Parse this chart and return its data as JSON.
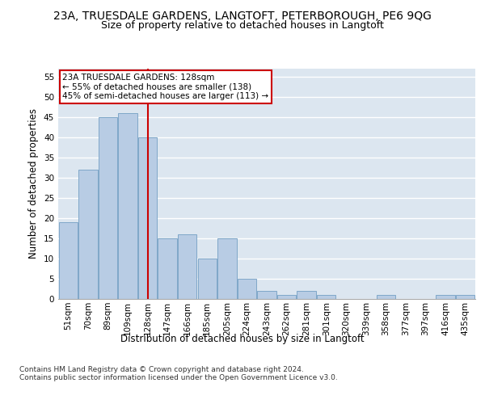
{
  "title": "23A, TRUESDALE GARDENS, LANGTOFT, PETERBOROUGH, PE6 9QG",
  "subtitle": "Size of property relative to detached houses in Langtoft",
  "xlabel": "Distribution of detached houses by size in Langtoft",
  "ylabel": "Number of detached properties",
  "categories": [
    "51sqm",
    "70sqm",
    "89sqm",
    "109sqm",
    "128sqm",
    "147sqm",
    "166sqm",
    "185sqm",
    "205sqm",
    "224sqm",
    "243sqm",
    "262sqm",
    "281sqm",
    "301sqm",
    "320sqm",
    "339sqm",
    "358sqm",
    "377sqm",
    "397sqm",
    "416sqm",
    "435sqm"
  ],
  "values": [
    19,
    32,
    45,
    46,
    40,
    15,
    16,
    10,
    15,
    5,
    2,
    1,
    2,
    1,
    0,
    0,
    1,
    0,
    0,
    1,
    1
  ],
  "bar_color": "#b8cce4",
  "bar_edge_color": "#7fa7c8",
  "vline_x_index": 4,
  "vline_color": "#cc0000",
  "annotation_text": "23A TRUESDALE GARDENS: 128sqm\n← 55% of detached houses are smaller (138)\n45% of semi-detached houses are larger (113) →",
  "annotation_box_color": "#ffffff",
  "annotation_box_edge": "#cc0000",
  "ylim": [
    0,
    57
  ],
  "yticks": [
    0,
    5,
    10,
    15,
    20,
    25,
    30,
    35,
    40,
    45,
    50,
    55
  ],
  "footer": "Contains HM Land Registry data © Crown copyright and database right 2024.\nContains public sector information licensed under the Open Government Licence v3.0.",
  "background_color": "#dce6f0",
  "grid_color": "#ffffff",
  "title_fontsize": 10,
  "subtitle_fontsize": 9,
  "label_fontsize": 8.5,
  "tick_fontsize": 7.5,
  "annotation_fontsize": 7.5,
  "footer_fontsize": 6.5
}
